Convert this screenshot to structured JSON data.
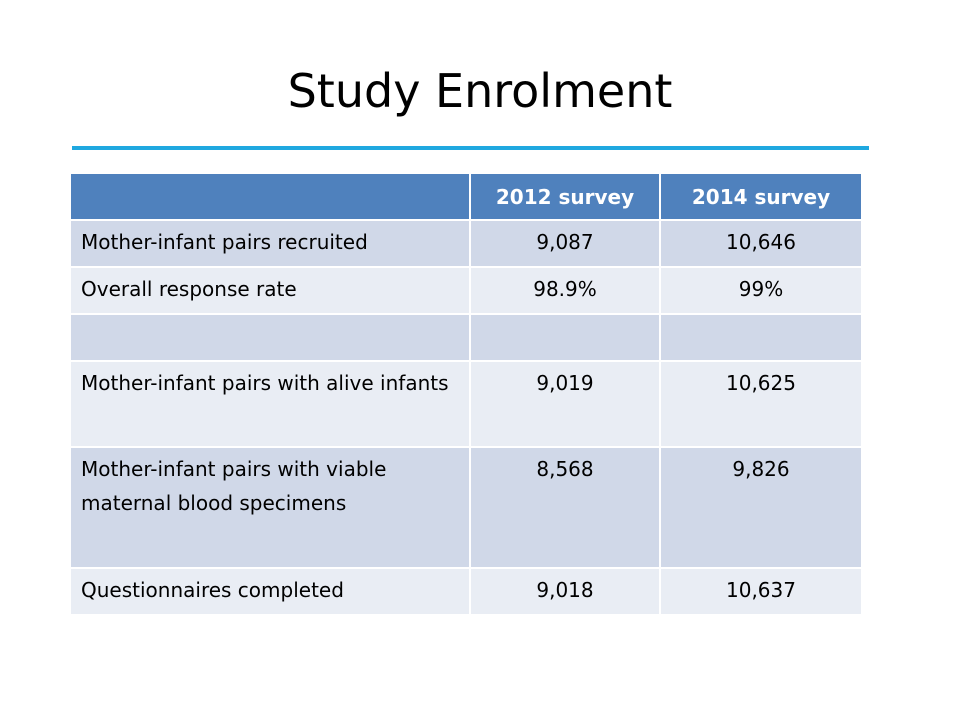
{
  "slide": {
    "title": "Study Enrolment"
  },
  "table": {
    "headers": [
      "",
      "2012 survey",
      "2014 survey"
    ],
    "rows": [
      {
        "label": "Mother-infant pairs recruited",
        "v2012": "9,087",
        "v2014": "10,646"
      },
      {
        "label": "Overall response rate",
        "v2012": "98.9%",
        "v2014": "99%"
      },
      {
        "label": "",
        "v2012": "",
        "v2014": ""
      },
      {
        "label": "Mother-infant pairs with alive infants",
        "v2012": "9,019",
        "v2014": "10,625"
      },
      {
        "label": "Mother-infant pairs with viable maternal blood specimens",
        "v2012": "8,568",
        "v2014": "9,826"
      },
      {
        "label": "Questionnaires completed",
        "v2012": "9,018",
        "v2014": "10,637"
      }
    ]
  },
  "colors": {
    "title_rule": "#1fa8e0",
    "header_fill": "#4f81bd",
    "band_dark": "#d0d8e8",
    "band_light": "#e9edf4"
  }
}
